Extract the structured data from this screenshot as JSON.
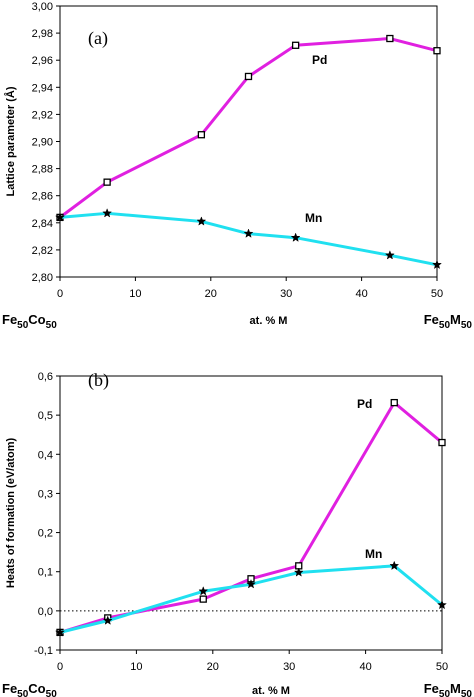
{
  "chart_data": [
    {
      "type": "line",
      "panel_label": "(a)",
      "xlabel": "at. % M",
      "ylabel": "Lattice parameter (Å)",
      "xlim": [
        0,
        50
      ],
      "ylim": [
        2.8,
        3.0
      ],
      "x_ticks": [
        "0",
        "10",
        "20",
        "30",
        "40",
        "50"
      ],
      "y_ticks": [
        "2,80",
        "2,82",
        "2,84",
        "2,86",
        "2,88",
        "2,90",
        "2,92",
        "2,94",
        "2,96",
        "2,98",
        "3,00"
      ],
      "x_end_labels": {
        "left": {
          "base": "Fe",
          "sub1": "50",
          "mid": "Co",
          "sub2": "50"
        },
        "right": {
          "base": "Fe",
          "sub1": "50",
          "mid": "M",
          "sub2": "50"
        }
      },
      "grid": false,
      "series": [
        {
          "name": "Pd",
          "color": "#e020e0",
          "marker": "square",
          "x": [
            0,
            6.25,
            18.75,
            25,
            31.25,
            43.75,
            50
          ],
          "y": [
            2.844,
            2.87,
            2.905,
            2.948,
            2.971,
            2.976,
            2.967
          ]
        },
        {
          "name": "Mn",
          "color": "#20e0f0",
          "marker": "star",
          "x": [
            0,
            6.25,
            18.75,
            25,
            31.25,
            43.75,
            50
          ],
          "y": [
            2.844,
            2.847,
            2.841,
            2.832,
            2.829,
            2.816,
            2.809
          ]
        }
      ]
    },
    {
      "type": "line",
      "panel_label": "(b)",
      "xlabel": "at. % M",
      "ylabel": "Heats of formation (eV/atom)",
      "xlim": [
        0,
        50
      ],
      "ylim": [
        -0.1,
        0.6
      ],
      "x_ticks": [
        "0",
        "10",
        "20",
        "30",
        "40",
        "50"
      ],
      "y_ticks": [
        "-0,1",
        "0,0",
        "0,1",
        "0,2",
        "0,3",
        "0,4",
        "0,5",
        "0,6"
      ],
      "x_end_labels": {
        "left": {
          "base": "Fe",
          "sub1": "50",
          "mid": "Co",
          "sub2": "50"
        },
        "right": {
          "base": "Fe",
          "sub1": "50",
          "mid": "M",
          "sub2": "50"
        }
      },
      "grid": false,
      "zero_line": true,
      "series": [
        {
          "name": "Pd",
          "color": "#e020e0",
          "marker": "square",
          "x": [
            0,
            6.25,
            18.75,
            25,
            31.25,
            43.75,
            50
          ],
          "y": [
            -0.055,
            -0.018,
            0.03,
            0.082,
            0.115,
            0.532,
            0.43
          ]
        },
        {
          "name": "Mn",
          "color": "#20e0f0",
          "marker": "star",
          "x": [
            0,
            6.25,
            18.75,
            25,
            31.25,
            43.75,
            50
          ],
          "y": [
            -0.055,
            -0.025,
            0.05,
            0.068,
            0.098,
            0.115,
            0.015
          ]
        }
      ]
    }
  ]
}
